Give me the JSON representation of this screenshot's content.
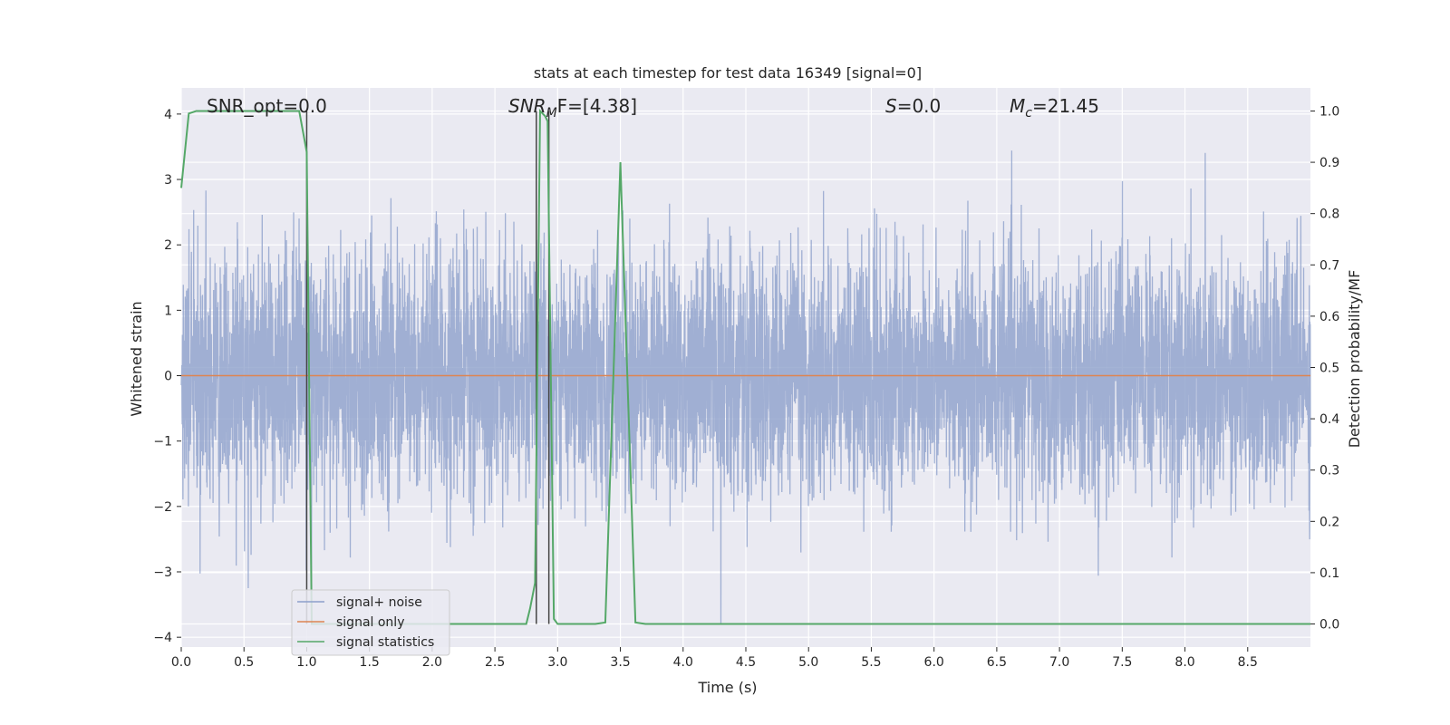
{
  "chart_data": {
    "type": "line",
    "title": "stats at each timestep for test data 16349 [signal=0]",
    "xlabel": "Time (s)",
    "ylabel": "Whitened strain",
    "ylabel_right": "Detection probability/MF",
    "xlim": [
      0,
      9
    ],
    "ylim": [
      -4.15,
      4.4
    ],
    "ylim_right": [
      -0.045,
      1.045
    ],
    "xticks": [
      "0.0",
      "0.5",
      "1.0",
      "1.5",
      "2.0",
      "2.5",
      "3.0",
      "3.5",
      "4.0",
      "4.5",
      "5.0",
      "5.5",
      "6.0",
      "6.5",
      "7.0",
      "7.5",
      "8.0",
      "8.5"
    ],
    "yticks": [
      "−4",
      "−3",
      "−2",
      "−1",
      "0",
      "1",
      "2",
      "3",
      "4"
    ],
    "yticks_right": [
      "0.0",
      "0.1",
      "0.2",
      "0.3",
      "0.4",
      "0.5",
      "0.6",
      "0.7",
      "0.8",
      "0.9",
      "1.0"
    ],
    "grid": true,
    "legend_position": "lower-left",
    "annotations": {
      "snr_opt": "SNR_opt=0.0",
      "snr_mf_main": "SNR",
      "snr_mf_sub": "M",
      "snr_mf_rest": "F=[4.38]",
      "s_main": "S",
      "s_rest": "=0.0",
      "mc_main": "M",
      "mc_sub": "c",
      "mc_rest": "=21.45"
    },
    "series": [
      {
        "name": "signal+ noise",
        "color": "#8da0cb",
        "noise_std": 0.9,
        "length_s": 9
      },
      {
        "name": "signal only",
        "color": "#dd8452",
        "x": [
          0,
          9
        ],
        "y": [
          0,
          0
        ]
      },
      {
        "name": "signal statistics",
        "color": "#55a868",
        "x": [
          0.0,
          0.06,
          0.12,
          0.2,
          0.3,
          0.5,
          0.7,
          0.9,
          0.94,
          1.0,
          1.04,
          1.08,
          1.2,
          1.5,
          2.0,
          2.5,
          2.75,
          2.78,
          2.82,
          2.86,
          2.9,
          2.92,
          2.97,
          3.0,
          3.1,
          3.2,
          3.3,
          3.38,
          3.44,
          3.5,
          3.56,
          3.62,
          3.7,
          4.0,
          5.0,
          6.0,
          7.0,
          8.0,
          9.0
        ],
        "y": [
          0.85,
          0.995,
          1.0,
          1.0,
          1.0,
          1.0,
          1.0,
          1.0,
          1.0,
          0.92,
          0.0,
          0.0,
          0.0,
          0.0,
          0.0,
          0.0,
          0.0,
          0.03,
          0.08,
          1.0,
          0.99,
          0.98,
          0.01,
          0.0,
          0.0,
          0.0,
          0.0,
          0.003,
          0.45,
          0.9,
          0.45,
          0.003,
          0.0,
          0.0,
          0.0,
          0.0,
          0.0,
          0.0,
          0.0
        ]
      }
    ],
    "vertical_lines_x": [
      1.0,
      2.83,
      2.93
    ]
  }
}
